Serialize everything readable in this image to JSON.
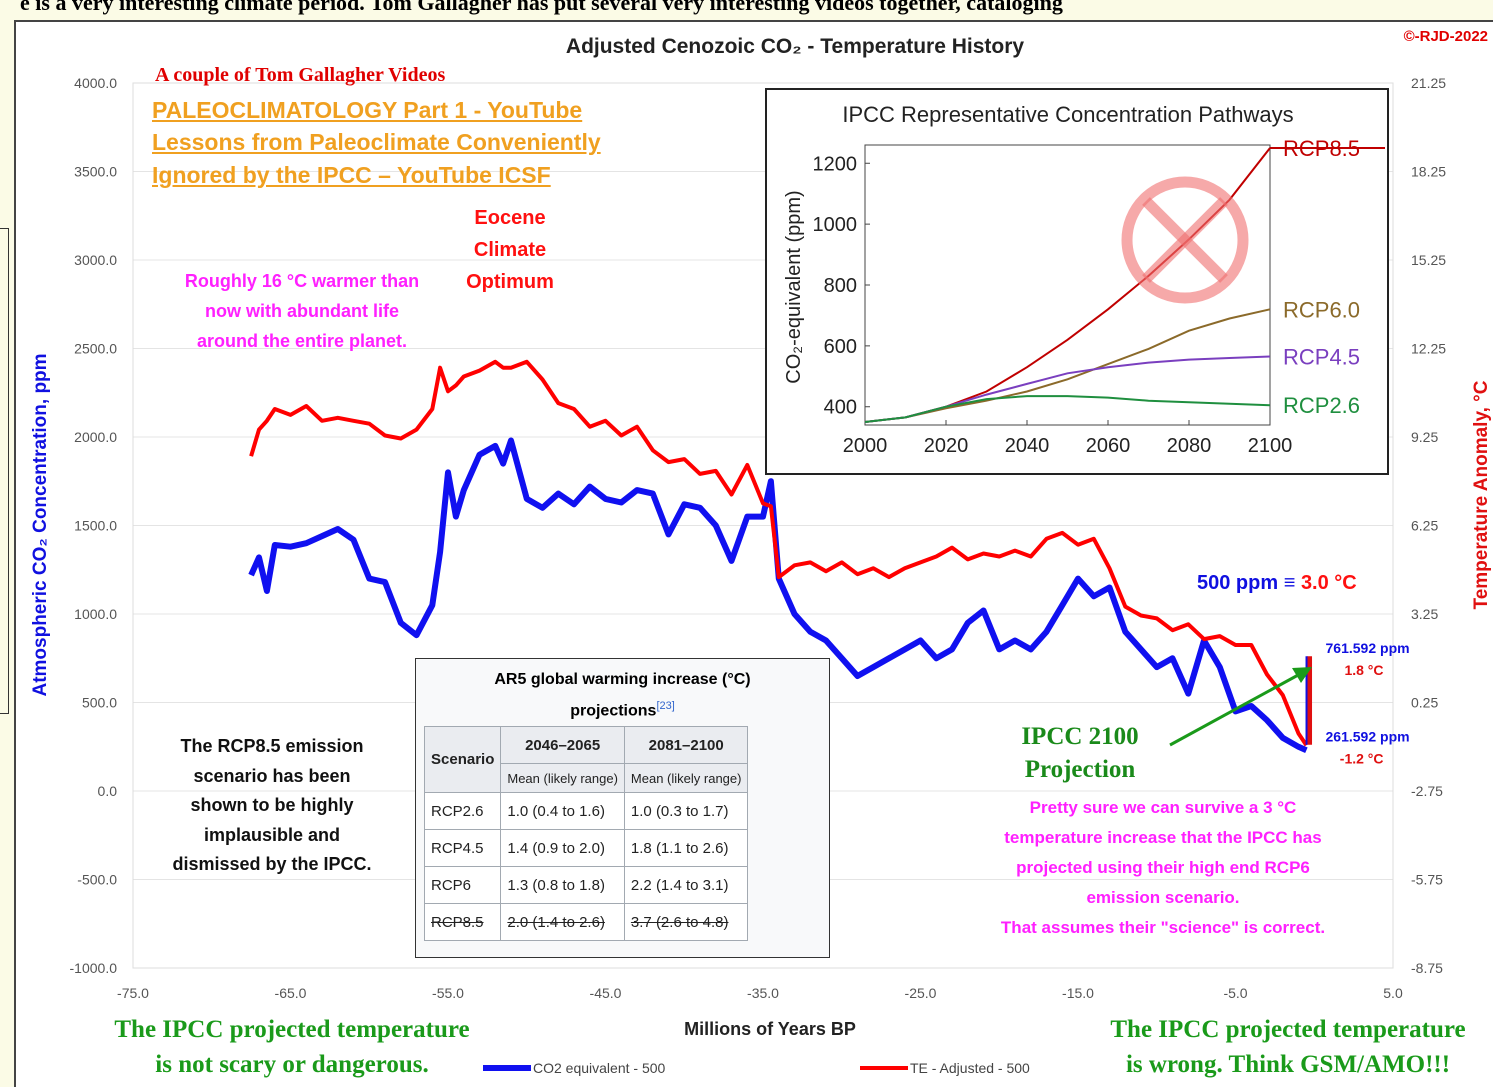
{
  "header_text": "e is a very interesting climate period. Tom Gallagher has put several very interesting videos together, cataloging",
  "chart_data": [
    {
      "type": "line",
      "title": "Adjusted Cenozoic CO₂ - Temperature History",
      "copyright": "©-RJD-2022",
      "x_label": "Millions of Years BP",
      "y_label": "Atmospheric CO₂ Concentration, ppm",
      "y2_label": "Temperature Anomaly, °C",
      "xlim": [
        -75,
        5
      ],
      "xticks": [
        {
          "value": -75,
          "label": "-75.0"
        },
        {
          "value": -65,
          "label": "-65.0"
        },
        {
          "value": -55,
          "label": "-55.0"
        },
        {
          "value": -45,
          "label": "-45.0"
        },
        {
          "value": -35,
          "label": "-35.0"
        },
        {
          "value": -25,
          "label": "-25.0"
        },
        {
          "value": -15,
          "label": "-15.0"
        },
        {
          "value": -5,
          "label": "-5.0"
        },
        {
          "value": 5,
          "label": "5.0"
        }
      ],
      "ylim": [
        -1000,
        4000
      ],
      "yticks": [
        {
          "value": -1000,
          "label": "-1000.0"
        },
        {
          "value": -500,
          "label": "-500.0"
        },
        {
          "value": 0,
          "label": "0.0"
        },
        {
          "value": 500,
          "label": "500.0"
        },
        {
          "value": 1000,
          "label": "1000.0"
        },
        {
          "value": 1500,
          "label": "1500.0"
        },
        {
          "value": 2000,
          "label": "2000.0"
        },
        {
          "value": 2500,
          "label": "2500.0"
        },
        {
          "value": 3000,
          "label": "3000.0"
        },
        {
          "value": 3500,
          "label": "3500.0"
        },
        {
          "value": 4000,
          "label": "4000.0"
        }
      ],
      "y2lim": [
        -8.75,
        21.25
      ],
      "y2ticks": [
        -8.75,
        -5.75,
        -2.75,
        0.25,
        3.25,
        6.25,
        9.25,
        12.25,
        15.25,
        18.25,
        21.25
      ],
      "grid": true,
      "x": [
        -67.5,
        -67,
        -66.5,
        -66,
        -65,
        -64,
        -63,
        -62,
        -61,
        -60,
        -59,
        -58,
        -57,
        -56,
        -55.5,
        -55,
        -54.5,
        -54,
        -53,
        -52,
        -51.5,
        -51,
        -50,
        -49,
        -48,
        -47,
        -46,
        -45,
        -44,
        -43,
        -42,
        -41,
        -40,
        -39,
        -38,
        -37,
        -36,
        -35,
        -34.5,
        -34,
        -33,
        -32,
        -31,
        -30,
        -29,
        -28,
        -27,
        -26,
        -25,
        -24,
        -23,
        -22,
        -21,
        -20,
        -19,
        -18,
        -17,
        -16,
        -15,
        -14,
        -13,
        -12,
        -11,
        -10,
        -9,
        -8,
        -7,
        -6,
        -5,
        -4,
        -3,
        -2,
        -1,
        -0.5
      ],
      "series": [
        {
          "name": "CO2 equivalent - 500",
          "color": "#1010f0",
          "values": [
            1220,
            1320,
            1130,
            1390,
            1380,
            1400,
            1440,
            1480,
            1420,
            1200,
            1180,
            950,
            880,
            1050,
            1350,
            1800,
            1550,
            1700,
            1900,
            1950,
            1850,
            1980,
            1650,
            1600,
            1680,
            1620,
            1720,
            1650,
            1630,
            1700,
            1680,
            1450,
            1620,
            1600,
            1500,
            1300,
            1550,
            1550,
            1750,
            1200,
            1000,
            900,
            850,
            750,
            650,
            700,
            750,
            800,
            850,
            750,
            800,
            950,
            1020,
            800,
            850,
            800,
            900,
            1050,
            1200,
            1100,
            1150,
            900,
            800,
            700,
            750,
            550,
            850,
            700,
            450,
            480,
            400,
            300,
            250,
            230
          ]
        },
        {
          "name": "TE - Adjusted - 500",
          "color": "#ff0000",
          "axis": "y2",
          "values": [
            8.6,
            9.5,
            9.8,
            10.2,
            10.0,
            10.3,
            9.8,
            9.9,
            9.8,
            9.7,
            9.3,
            9.2,
            9.5,
            10.2,
            11.6,
            10.8,
            11.0,
            11.3,
            11.5,
            11.8,
            11.6,
            11.6,
            11.8,
            11.2,
            10.4,
            10.2,
            9.6,
            9.8,
            9.3,
            9.6,
            8.8,
            8.4,
            8.5,
            8.0,
            8.1,
            7.3,
            8.3,
            7.0,
            6.9,
            4.5,
            4.9,
            5.0,
            4.7,
            5.0,
            4.6,
            4.8,
            4.5,
            4.8,
            5.0,
            5.2,
            5.5,
            5.1,
            5.3,
            5.2,
            5.4,
            5.2,
            5.8,
            6.0,
            5.6,
            5.8,
            4.8,
            3.5,
            3.2,
            3.1,
            2.7,
            2.9,
            2.4,
            2.5,
            2.2,
            2.2,
            1.2,
            0.5,
            -0.8,
            -1.2
          ]
        }
      ],
      "projection": {
        "x": -0.3,
        "values": [
          261.592,
          761.592
        ],
        "value_labels": [
          "261.592 ppm",
          "761.592 ppm"
        ],
        "temp_labels": [
          "-1.2 °C",
          "1.8 °C"
        ]
      }
    },
    {
      "type": "line",
      "title": "IPCC Representative Concentration Pathways",
      "y_label": "CO₂-equivalent (ppm)",
      "x": [
        2000,
        2010,
        2020,
        2030,
        2040,
        2050,
        2060,
        2070,
        2080,
        2090,
        2100
      ],
      "xlim": [
        2000,
        2100
      ],
      "xticks": [
        2000,
        2020,
        2040,
        2060,
        2080,
        2100
      ],
      "ylim": [
        340,
        1260
      ],
      "yticks": [
        400,
        600,
        800,
        1000,
        1200
      ],
      "series": [
        {
          "name": "RCP8.5",
          "color": "#c00000",
          "values": [
            350,
            365,
            400,
            450,
            530,
            620,
            720,
            830,
            950,
            1080,
            1250
          ]
        },
        {
          "name": "RCP6.0",
          "color": "#8b6a2a",
          "values": [
            350,
            365,
            395,
            420,
            450,
            490,
            540,
            590,
            650,
            690,
            720
          ]
        },
        {
          "name": "RCP4.5",
          "color": "#7a3fbf",
          "values": [
            350,
            365,
            400,
            440,
            475,
            510,
            530,
            545,
            555,
            560,
            565
          ]
        },
        {
          "name": "RCP2.6",
          "color": "#1f8f3f",
          "values": [
            350,
            365,
            400,
            425,
            435,
            435,
            430,
            420,
            415,
            410,
            405
          ]
        }
      ]
    }
  ],
  "table": {
    "title": "AR5 global warming increase (°C)",
    "title_2": "projections",
    "ref": "[23]",
    "headers": [
      "Scenario",
      "2046–2065",
      "2081–2100"
    ],
    "subheaders": [
      "Mean (likely range)",
      "Mean (likely range)"
    ],
    "rows": [
      [
        "RCP2.6",
        "1.0 (0.4 to 1.6)",
        "1.0 (0.3 to 1.7)"
      ],
      [
        "RCP4.5",
        "1.4 (0.9 to 2.0)",
        "1.8 (1.1 to 2.6)"
      ],
      [
        "RCP6",
        "1.3 (0.8 to 1.8)",
        "2.2 (1.4 to 3.1)"
      ],
      [
        "RCP8.5",
        "2.0 (1.4 to 2.6)",
        "3.7 (2.6 to 4.8)"
      ]
    ]
  },
  "annotations": {
    "videos_title": "A couple of Tom Gallagher Videos",
    "links": [
      "PALEOCLIMATOLOGY Part 1 - YouTube",
      "Lessons from Paleoclimate Conveniently",
      "Ignored by the IPCC – YouTube ICSF"
    ],
    "eocene": [
      "Eocene",
      "Climate",
      "Optimum"
    ],
    "warmer": [
      "Roughly 16 °C warmer than",
      "now  with abundant life",
      "around the entire planet."
    ],
    "rcp85": [
      "The RCP8.5 emission",
      "scenario has been",
      "shown to be highly",
      "implausible and",
      "dismissed by the IPCC."
    ],
    "equivalence": [
      "500 ppm ≡",
      "3.0 °C"
    ],
    "ipcc_projection": [
      "IPCC 2100",
      "Projection"
    ],
    "survive": [
      "Pretty sure we can survive a 3 °C",
      "temperature increase that the IPCC has",
      "projected using their high end RCP6",
      "emission scenario.",
      "That assumes their \"science\" is correct."
    ],
    "bottom_left": [
      "The IPCC projected temperature",
      "is not scary or dangerous."
    ],
    "bottom_right": [
      "The IPCC projected temperature",
      "is wrong. Think GSM/AMO!!!"
    ]
  }
}
